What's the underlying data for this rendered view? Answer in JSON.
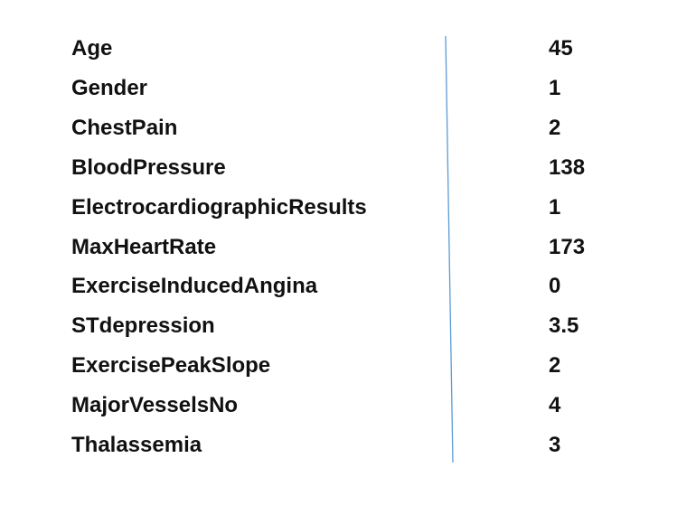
{
  "divider_color": "#5b9bd5",
  "rows": [
    {
      "label": "Age",
      "value": "45"
    },
    {
      "label": "Gender",
      "value": "1"
    },
    {
      "label": "ChestPain",
      "value": "2"
    },
    {
      "label": "BloodPressure",
      "value": "138"
    },
    {
      "label": "ElectrocardiographicResults",
      "value": "1"
    },
    {
      "label": "MaxHeartRate",
      "value": "173"
    },
    {
      "label": "ExerciseInducedAngina",
      "value": "0"
    },
    {
      "label": "STdepression",
      "value": "3.5"
    },
    {
      "label": "ExercisePeakSlope",
      "value": "2"
    },
    {
      "label": "MajorVesselsNo",
      "value": "4"
    },
    {
      "label": "Thalassemia",
      "value": "3"
    }
  ]
}
